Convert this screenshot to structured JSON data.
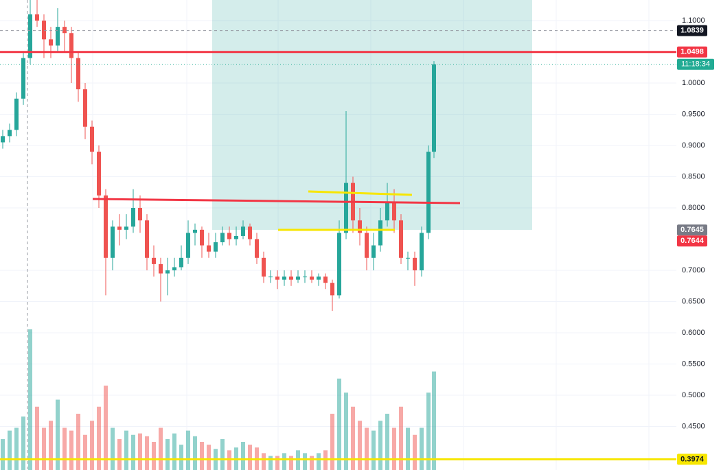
{
  "chart_data": {
    "type": "candlestick",
    "open": [
      0.905,
      0.915,
      0.925,
      0.975,
      1.04,
      1.11,
      1.1,
      1.07,
      1.06,
      1.09,
      1.08,
      1.04,
      0.99,
      0.93,
      0.89,
      0.82,
      0.72,
      0.77,
      0.765,
      0.77,
      0.8,
      0.78,
      0.72,
      0.71,
      0.695,
      0.7,
      0.705,
      0.72,
      0.76,
      0.765,
      0.74,
      0.73,
      0.745,
      0.76,
      0.75,
      0.755,
      0.77,
      0.75,
      0.72,
      0.69,
      0.69,
      0.685,
      0.69,
      0.685,
      0.69,
      0.69,
      0.685,
      0.69,
      0.68,
      0.66,
      0.76,
      0.84,
      0.78,
      0.76,
      0.72,
      0.74,
      0.78,
      0.81,
      0.78,
      0.72,
      0.72,
      0.7,
      0.76,
      0.89
    ],
    "high": [
      0.925,
      0.935,
      0.985,
      1.05,
      1.14,
      1.14,
      1.11,
      1.09,
      1.12,
      1.1,
      1.09,
      1.05,
      1.0,
      0.94,
      0.9,
      0.83,
      0.78,
      0.79,
      0.79,
      0.83,
      0.82,
      0.79,
      0.74,
      0.72,
      0.72,
      0.72,
      0.74,
      0.78,
      0.775,
      0.77,
      0.76,
      0.76,
      0.77,
      0.77,
      0.77,
      0.78,
      0.775,
      0.76,
      0.73,
      0.7,
      0.7,
      0.7,
      0.7,
      0.7,
      0.7,
      0.7,
      0.695,
      0.695,
      0.685,
      0.78,
      0.955,
      0.85,
      0.8,
      0.77,
      0.76,
      0.8,
      0.84,
      0.83,
      0.79,
      0.73,
      0.73,
      0.77,
      0.9,
      1.035
    ],
    "low": [
      0.895,
      0.905,
      0.915,
      0.965,
      1.03,
      1.09,
      1.04,
      1.04,
      1.05,
      1.05,
      1.0,
      0.97,
      0.91,
      0.87,
      0.8,
      0.66,
      0.7,
      0.74,
      0.75,
      0.76,
      0.76,
      0.7,
      0.69,
      0.65,
      0.66,
      0.69,
      0.7,
      0.71,
      0.74,
      0.72,
      0.72,
      0.72,
      0.74,
      0.74,
      0.74,
      0.75,
      0.74,
      0.71,
      0.68,
      0.68,
      0.67,
      0.675,
      0.675,
      0.68,
      0.68,
      0.68,
      0.675,
      0.67,
      0.635,
      0.655,
      0.75,
      0.76,
      0.74,
      0.7,
      0.7,
      0.73,
      0.77,
      0.76,
      0.71,
      0.7,
      0.675,
      0.69,
      0.75,
      0.88
    ],
    "close": [
      0.915,
      0.925,
      0.975,
      1.04,
      1.11,
      1.1,
      1.07,
      1.06,
      1.09,
      1.08,
      1.04,
      0.99,
      0.93,
      0.89,
      0.82,
      0.72,
      0.77,
      0.765,
      0.77,
      0.8,
      0.78,
      0.72,
      0.71,
      0.695,
      0.7,
      0.705,
      0.72,
      0.76,
      0.765,
      0.74,
      0.73,
      0.745,
      0.76,
      0.75,
      0.755,
      0.77,
      0.75,
      0.72,
      0.69,
      0.69,
      0.685,
      0.69,
      0.685,
      0.69,
      0.69,
      0.685,
      0.69,
      0.68,
      0.66,
      0.76,
      0.84,
      0.78,
      0.76,
      0.72,
      0.74,
      0.78,
      0.81,
      0.78,
      0.72,
      0.72,
      0.7,
      0.76,
      0.89,
      1.03
    ],
    "volume": [
      22,
      28,
      30,
      38,
      100,
      45,
      30,
      35,
      50,
      30,
      28,
      40,
      25,
      35,
      45,
      60,
      30,
      22,
      28,
      25,
      26,
      24,
      20,
      30,
      22,
      26,
      18,
      28,
      24,
      20,
      18,
      15,
      22,
      14,
      16,
      20,
      18,
      16,
      12,
      10,
      10,
      12,
      10,
      14,
      12,
      10,
      12,
      14,
      40,
      65,
      55,
      45,
      35,
      30,
      28,
      35,
      40,
      30,
      45,
      30,
      25,
      30,
      55,
      70
    ],
    "up_color": "#26a69a",
    "down_color": "#ef5350",
    "ylim": [
      0.3802,
      1.133
    ],
    "yticks": [
      {
        "value": 1.1,
        "label": "1.1000"
      },
      {
        "value": 1.0,
        "label": "1.0000"
      },
      {
        "value": 0.95,
        "label": "0.9500"
      },
      {
        "value": 0.9,
        "label": "0.9000"
      },
      {
        "value": 0.85,
        "label": "0.8500"
      },
      {
        "value": 0.8,
        "label": "0.8000"
      },
      {
        "value": 0.7,
        "label": "0.7000"
      },
      {
        "value": 0.65,
        "label": "0.6500"
      },
      {
        "value": 0.6,
        "label": "0.6000"
      },
      {
        "value": 0.55,
        "label": "0.5500"
      },
      {
        "value": 0.5,
        "label": "0.5000"
      },
      {
        "value": 0.45,
        "label": "0.4500"
      }
    ],
    "grid": true,
    "price_labels": [
      {
        "value": 1.0839,
        "color": "#131722",
        "text_color": "#ffffff",
        "line": "dashed"
      },
      {
        "value": 1.0498,
        "color": "#f23645",
        "text_color": "#ffffff",
        "line": "solid"
      },
      {
        "value": 0.7645,
        "color": "#787b86",
        "text_color": "#ffffff",
        "line": "none"
      },
      {
        "value": 0.7644,
        "color": "#f23645",
        "text_color": "#ffffff",
        "line": "none"
      },
      {
        "value": 0.3974,
        "color": "#f7e600",
        "text_color": "#131722",
        "line": "solid"
      }
    ],
    "countdown": "11:18:34",
    "countdown_color": "#22ab94"
  }
}
